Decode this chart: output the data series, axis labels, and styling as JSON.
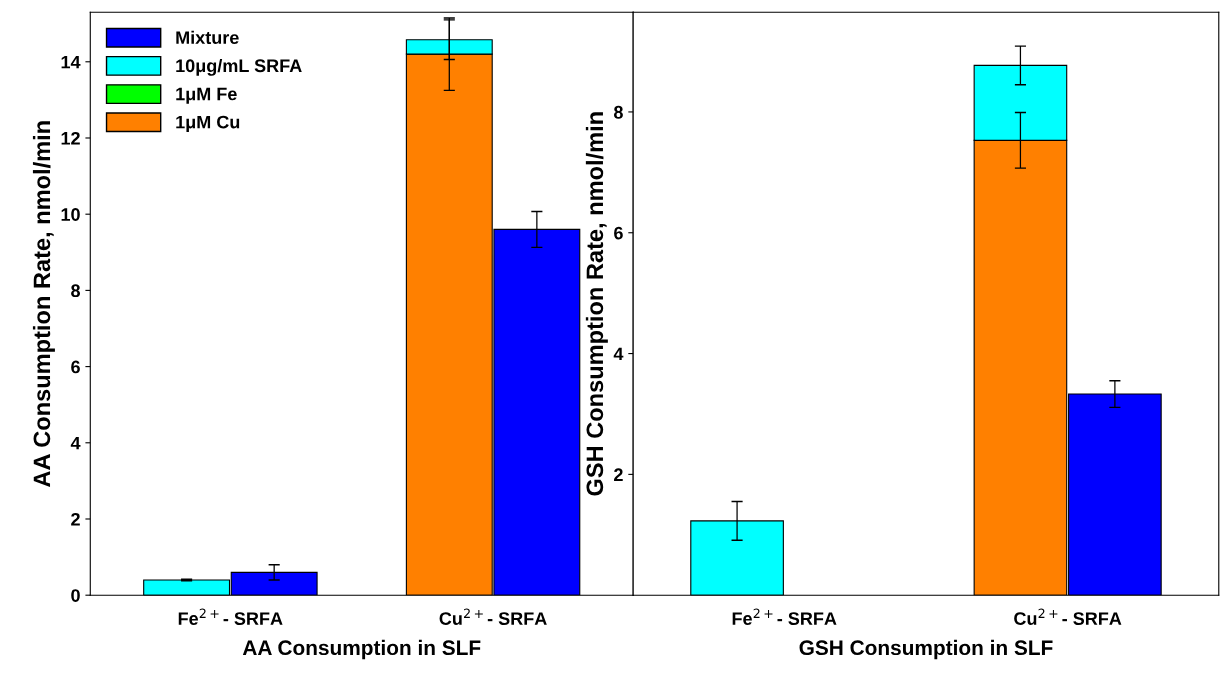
{
  "chart_data": [
    {
      "type": "bar",
      "stacked": true,
      "categories": [
        "Fe$^{2+}$- SRFA",
        null,
        null,
        "Cu$^{2+}$- SRFA",
        null
      ],
      "xlabel": "AA Consumption in SLF",
      "ylabel": "AA Consumption Rate, nmol/min",
      "ylim": [
        0,
        15.3
      ],
      "yticks": [
        0,
        2,
        4,
        6,
        8,
        10,
        12,
        14
      ],
      "legend": "top left",
      "series": [
        {
          "name": "1μM Cu",
          "color": "#ff8000",
          "values": [
            0,
            null,
            null,
            14.2,
            null
          ],
          "errors": [
            null,
            null,
            null,
            0.95,
            null
          ]
        },
        {
          "name": "1μM Fe",
          "color": "#00ff00",
          "values": [
            0,
            null,
            null,
            0,
            null
          ],
          "errors": [
            null,
            null,
            null,
            null,
            null
          ]
        },
        {
          "name": "10μg/mL SRFA",
          "color": "#00ffff",
          "values": [
            0.4,
            null,
            null,
            0.38,
            null
          ],
          "errors": [
            0.02,
            null,
            null,
            0.52,
            null
          ]
        },
        {
          "name": "Mixture",
          "color": "#0000ff",
          "values": [
            null,
            0.6,
            null,
            null,
            9.6
          ],
          "errors": [
            null,
            0.2,
            null,
            null,
            0.47
          ]
        }
      ]
    },
    {
      "type": "bar",
      "stacked": true,
      "categories": [
        "Fe$^{2+}$- SRFA",
        null,
        null,
        "Cu$^{2+}$- SRFA",
        null
      ],
      "xlabel": "GSH Consumption in SLF",
      "ylabel": "GSH Consumption Rate, nmol/min",
      "ylim": [
        0,
        9.65
      ],
      "yticks": [
        2,
        4,
        6,
        8
      ],
      "legend": false,
      "series": [
        {
          "color": "#ff8000",
          "values": [
            0,
            null,
            null,
            7.53,
            null
          ],
          "errors": [
            null,
            null,
            null,
            0.46,
            null
          ]
        },
        {
          "color": "#00ffff",
          "values": [
            1.23,
            null,
            null,
            1.24,
            null
          ],
          "errors": [
            0.32,
            null,
            null,
            0.32,
            null
          ]
        },
        {
          "color": "#0000ff",
          "values": [
            null,
            null,
            null,
            null,
            3.33
          ],
          "errors": [
            null,
            null,
            null,
            null,
            0.22
          ]
        }
      ]
    }
  ]
}
